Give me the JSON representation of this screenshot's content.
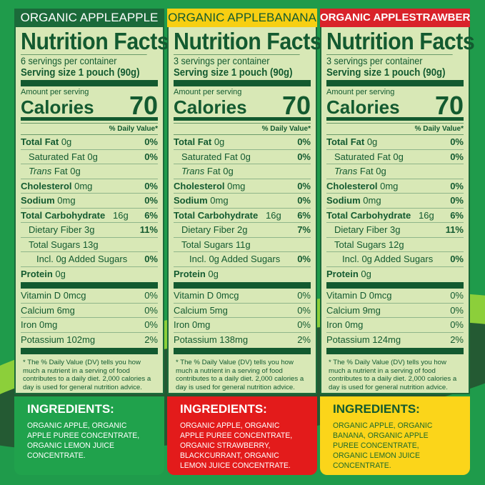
{
  "colors": {
    "panel_bg": "#d8e8b6",
    "text": "#135a30"
  },
  "panels": [
    {
      "title": "ORGANIC APPLEAPPLE",
      "title_bg": "#1b6a3a",
      "title_color": "#ffffff",
      "heading": "Nutrition Facts",
      "servings": "6 servings per container",
      "serving_size": "Serving size 1 pouch (90g)",
      "amount_label": "Amount per serving",
      "calories_label": "Calories",
      "calories": "70",
      "dv_header": "% Daily Value*",
      "rows": [
        {
          "bold": "Total Fat",
          "text": " 0g",
          "dv": "0%",
          "indent": 0
        },
        {
          "bold": "",
          "text": "Saturated Fat 0g",
          "dv": "0%",
          "indent": 1
        },
        {
          "bold": "",
          "italic": "Trans",
          "text": " Fat 0g",
          "dv": "",
          "indent": 1
        },
        {
          "bold": "Cholesterol",
          "text": " 0mg",
          "dv": "0%",
          "indent": 0
        },
        {
          "bold": "Sodium",
          "text": " 0mg",
          "dv": "0%",
          "indent": 0
        },
        {
          "bold": "Total Carbohydrate",
          "text": "   16g",
          "dv": "6%",
          "indent": 0
        },
        {
          "bold": "",
          "text": "Dietary Fiber 3g",
          "dv": "11%",
          "indent": 1
        },
        {
          "bold": "",
          "text": "Total Sugars 13g",
          "dv": "",
          "indent": 1
        },
        {
          "bold": "",
          "text": "Incl. 0g Added Sugars",
          "dv": "0%",
          "indent": 2
        },
        {
          "bold": "Protein",
          "text": " 0g",
          "dv": "",
          "indent": 0
        }
      ],
      "vitamins": [
        {
          "text": "Vitamin D 0mcg",
          "dv": "0%"
        },
        {
          "text": "Calcium 6mg",
          "dv": "0%"
        },
        {
          "text": "Iron 0mg",
          "dv": "0%"
        },
        {
          "text": "Potassium 102mg",
          "dv": "2%"
        }
      ],
      "footnote": "* The % Daily Value (DV) tells you how much a nutrient in a serving of food contributes to a daily diet. 2,000 calories a day is used for general nutrition advice.",
      "ingredients_title": "INGREDIENTS:",
      "ingredients": "ORGANIC APPLE, ORGANIC APPLE PUREE CONCENTRATE, ORGANIC LEMON JUICE CONCENTRATE.",
      "ing_bg": "#20a24c",
      "ing_color": "#ffffff",
      "ing_title_color": "#ffffff"
    },
    {
      "title": "ORGANIC APPLEBANANA",
      "title_bg": "#f7cf12",
      "title_color": "#135a30",
      "heading": "Nutrition Facts",
      "servings": "3 servings per container",
      "serving_size": "Serving size 1 pouch (90g)",
      "amount_label": "Amount per serving",
      "calories_label": "Calories",
      "calories": "70",
      "dv_header": "% Daily Value*",
      "rows": [
        {
          "bold": "Total Fat",
          "text": " 0g",
          "dv": "0%",
          "indent": 0
        },
        {
          "bold": "",
          "text": "Saturated Fat 0g",
          "dv": "0%",
          "indent": 1
        },
        {
          "bold": "",
          "italic": "Trans",
          "text": " Fat 0g",
          "dv": "",
          "indent": 1
        },
        {
          "bold": "Cholesterol",
          "text": " 0mg",
          "dv": "0%",
          "indent": 0
        },
        {
          "bold": "Sodium",
          "text": " 0mg",
          "dv": "0%",
          "indent": 0
        },
        {
          "bold": "Total Carbohydrate",
          "text": "   16g",
          "dv": "6%",
          "indent": 0
        },
        {
          "bold": "",
          "text": "Dietary Fiber 2g",
          "dv": "7%",
          "indent": 1
        },
        {
          "bold": "",
          "text": "Total Sugars 11g",
          "dv": "",
          "indent": 1
        },
        {
          "bold": "",
          "text": "Incl. 0g Added Sugars",
          "dv": "0%",
          "indent": 2
        },
        {
          "bold": "Protein",
          "text": " 0g",
          "dv": "",
          "indent": 0
        }
      ],
      "vitamins": [
        {
          "text": "Vitamin D 0mcg",
          "dv": "0%"
        },
        {
          "text": "Calcium 5mg",
          "dv": "0%"
        },
        {
          "text": "Iron 0mg",
          "dv": "0%"
        },
        {
          "text": "Potassium 138mg",
          "dv": "2%"
        }
      ],
      "footnote": "* The % Daily Value (DV) tells you how much a nutrient in a serving of food contributes to a daily diet. 2,000 calories a day is used for general nutrition advice.",
      "ingredients_title": "INGREDIENTS:",
      "ingredients": "ORGANIC APPLE, ORGANIC APPLE PUREE CONCENTRATE, ORGANIC STRAWBERRY, BLACKCURRANT, ORGANIC LEMON JUICE CONCENTRATE.",
      "ing_bg": "#e31b1b",
      "ing_color": "#ffffff",
      "ing_title_color": "#ffffff"
    },
    {
      "title": "ORGANIC APPLESTRAWBERRY",
      "title_bg": "#d9222a",
      "title_color": "#ffffff",
      "heading": "Nutrition Facts",
      "servings": "3 servings per container",
      "serving_size": "Serving size 1 pouch (90g)",
      "amount_label": "Amount per serving",
      "calories_label": "Calories",
      "calories": "70",
      "dv_header": "% Daily Value*",
      "rows": [
        {
          "bold": "Total Fat",
          "text": " 0g",
          "dv": "0%",
          "indent": 0
        },
        {
          "bold": "",
          "text": "Saturated Fat 0g",
          "dv": "0%",
          "indent": 1
        },
        {
          "bold": "",
          "italic": "Trans",
          "text": " Fat 0g",
          "dv": "",
          "indent": 1
        },
        {
          "bold": "Cholesterol",
          "text": " 0mg",
          "dv": "0%",
          "indent": 0
        },
        {
          "bold": "Sodium",
          "text": " 0mg",
          "dv": "0%",
          "indent": 0
        },
        {
          "bold": "Total Carbohydrate",
          "text": "   16g",
          "dv": "6%",
          "indent": 0
        },
        {
          "bold": "",
          "text": "Dietary Fiber 3g",
          "dv": "11%",
          "indent": 1
        },
        {
          "bold": "",
          "text": "Total Sugars 12g",
          "dv": "",
          "indent": 1
        },
        {
          "bold": "",
          "text": "Incl. 0g Added Sugars",
          "dv": "0%",
          "indent": 2
        },
        {
          "bold": "Protein",
          "text": " 0g",
          "dv": "",
          "indent": 0
        }
      ],
      "vitamins": [
        {
          "text": "Vitamin D 0mcg",
          "dv": "0%"
        },
        {
          "text": "Calcium 9mg",
          "dv": "0%"
        },
        {
          "text": "Iron 0mg",
          "dv": "0%"
        },
        {
          "text": "Potassium 124mg",
          "dv": "2%"
        }
      ],
      "footnote": "* The % Daily Value (DV) tells you how much a nutrient in a serving of food contributes to a daily diet. 2,000 calories a day is used for general nutrition advice.",
      "ingredients_title": "INGREDIENTS:",
      "ingredients": "ORGANIC APPLE, ORGANIC BANANA, ORGANIC APPLE PUREE CONCENTRATE, ORGANIC LEMON JUICE CONCENTRATE.",
      "ing_bg": "#fbd51a",
      "ing_color": "#1f6a2a",
      "ing_title_color": "#135a30"
    }
  ]
}
